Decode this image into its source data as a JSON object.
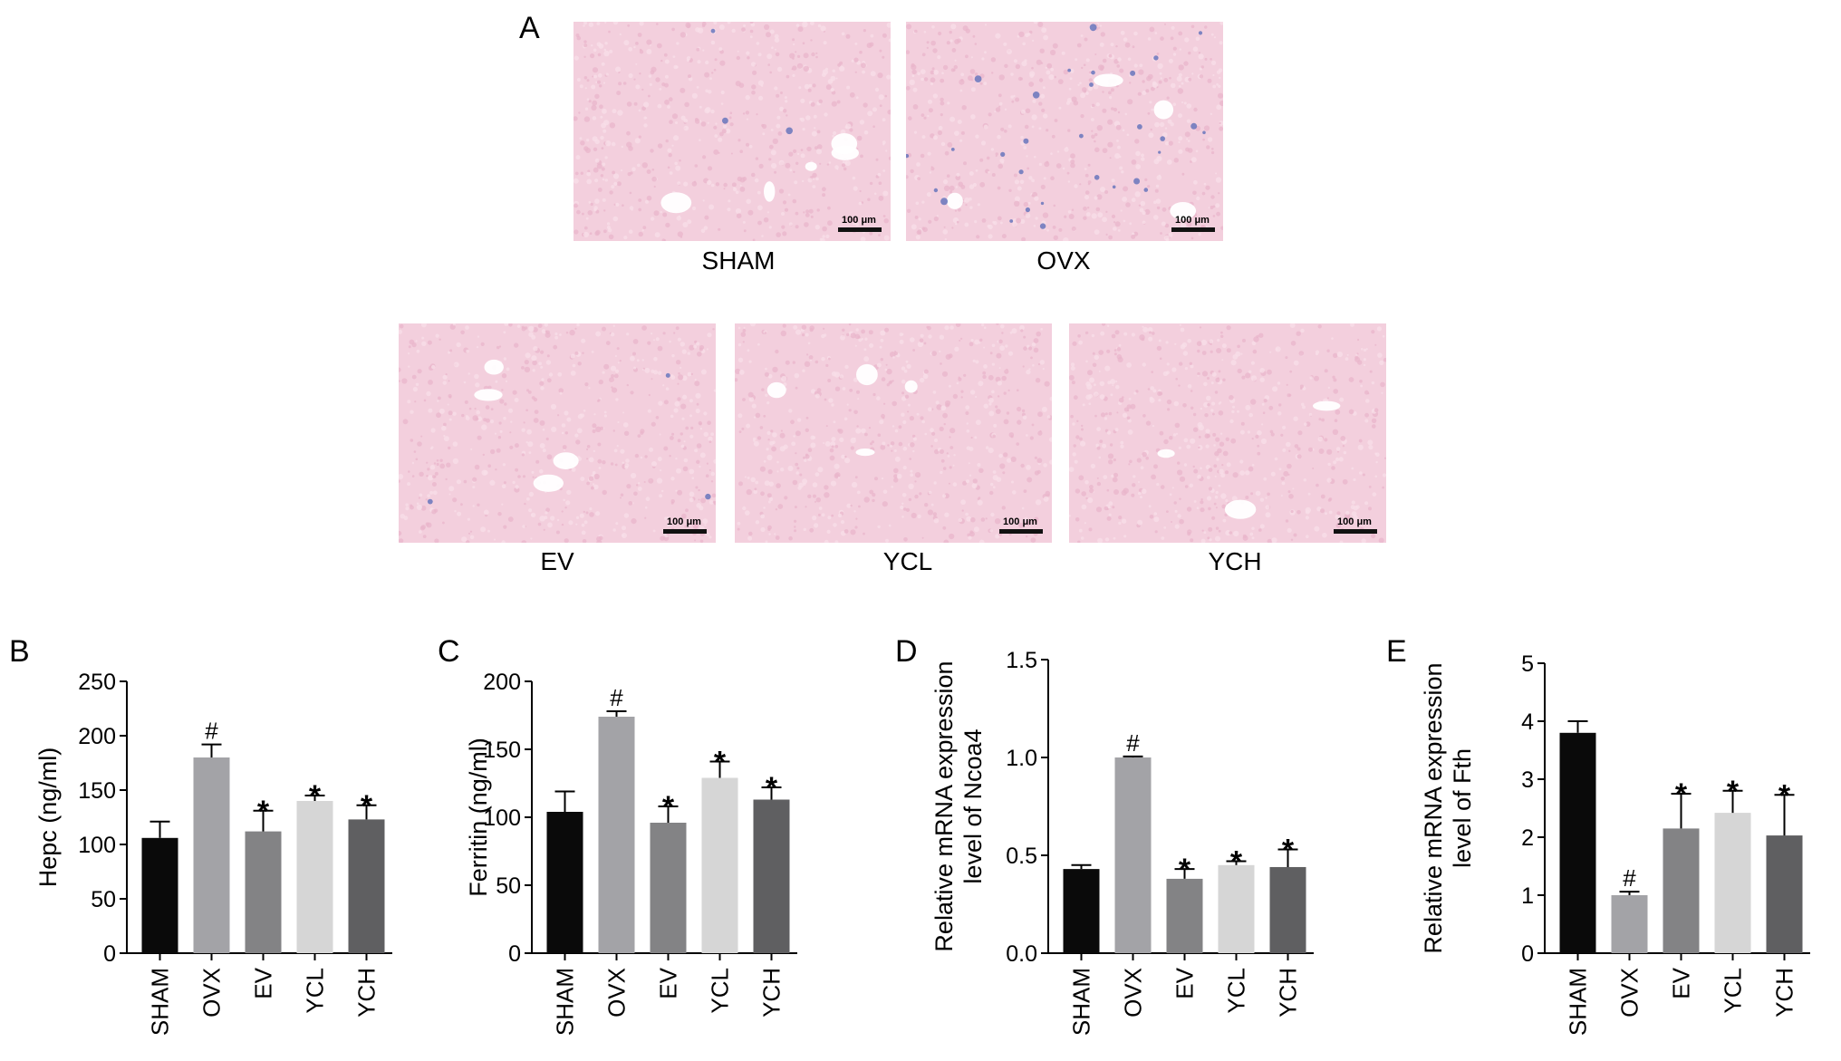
{
  "panel_letters": {
    "a": "A",
    "b": "B",
    "c": "C",
    "d": "D",
    "e": "E"
  },
  "micrographs": [
    {
      "label": "SHAM",
      "scale": "100 μm",
      "stain": "sparse"
    },
    {
      "label": "OVX",
      "scale": "100 μm",
      "stain": "dense"
    },
    {
      "label": "EV",
      "scale": "100 μm",
      "stain": "sparse"
    },
    {
      "label": "YCL",
      "scale": "100 μm",
      "stain": "none"
    },
    {
      "label": "YCH",
      "scale": "100 μm",
      "stain": "none"
    }
  ],
  "colors": {
    "bar_colors": [
      "#0a0a0a",
      "#a3a3a7",
      "#838385",
      "#d6d6d6",
      "#5f5f61"
    ],
    "tissue_bg": "#f3cfdd",
    "stain": "#4a63b5"
  },
  "chart_data": [
    {
      "type": "bar",
      "panel": "B",
      "categories": [
        "SHAM",
        "OVX",
        "EV",
        "YCL",
        "YCH"
      ],
      "values": [
        106,
        180,
        112,
        140,
        123
      ],
      "errors": [
        15,
        12,
        19,
        5,
        13
      ],
      "annotations": [
        "",
        "#",
        "*",
        "*",
        "*"
      ],
      "ylabel": "Hepc (ng/ml)",
      "ylim": [
        0,
        250
      ],
      "yticks": [
        "0",
        "50",
        "100",
        "150",
        "200",
        "250"
      ]
    },
    {
      "type": "bar",
      "panel": "C",
      "categories": [
        "SHAM",
        "OVX",
        "EV",
        "YCL",
        "YCH"
      ],
      "values": [
        104,
        174,
        96,
        129,
        113
      ],
      "errors": [
        15,
        4,
        12,
        12,
        9
      ],
      "annotations": [
        "",
        "#",
        "*",
        "*",
        "*"
      ],
      "ylabel": "Ferritin (ng/ml)",
      "ylim": [
        0,
        200
      ],
      "yticks": [
        "0",
        "50",
        "100",
        "150",
        "200"
      ]
    },
    {
      "type": "bar",
      "panel": "D",
      "categories": [
        "SHAM",
        "OVX",
        "EV",
        "YCL",
        "YCH"
      ],
      "values": [
        0.43,
        1.0,
        0.38,
        0.45,
        0.44
      ],
      "errors": [
        0.02,
        0.005,
        0.05,
        0.02,
        0.09
      ],
      "annotations": [
        "",
        "#",
        "*",
        "*",
        "*"
      ],
      "ylabel": [
        "Relative mRNA expression",
        "level of Ncoa4"
      ],
      "ylim": [
        0,
        1.5
      ],
      "yticks": [
        "0.0",
        "0.5",
        "1.0",
        "1.5"
      ]
    },
    {
      "type": "bar",
      "panel": "E",
      "categories": [
        "SHAM",
        "OVX",
        "EV",
        "YCL",
        "YCH"
      ],
      "values": [
        3.8,
        1.0,
        2.15,
        2.42,
        2.03
      ],
      "errors": [
        0.2,
        0.06,
        0.6,
        0.38,
        0.7
      ],
      "annotations": [
        "",
        "#",
        "*",
        "*",
        "*"
      ],
      "ylabel": [
        "Relative mRNA expression",
        "level of Fth"
      ],
      "ylim": [
        0,
        5
      ],
      "yticks": [
        "0",
        "1",
        "2",
        "3",
        "4",
        "5"
      ]
    }
  ]
}
